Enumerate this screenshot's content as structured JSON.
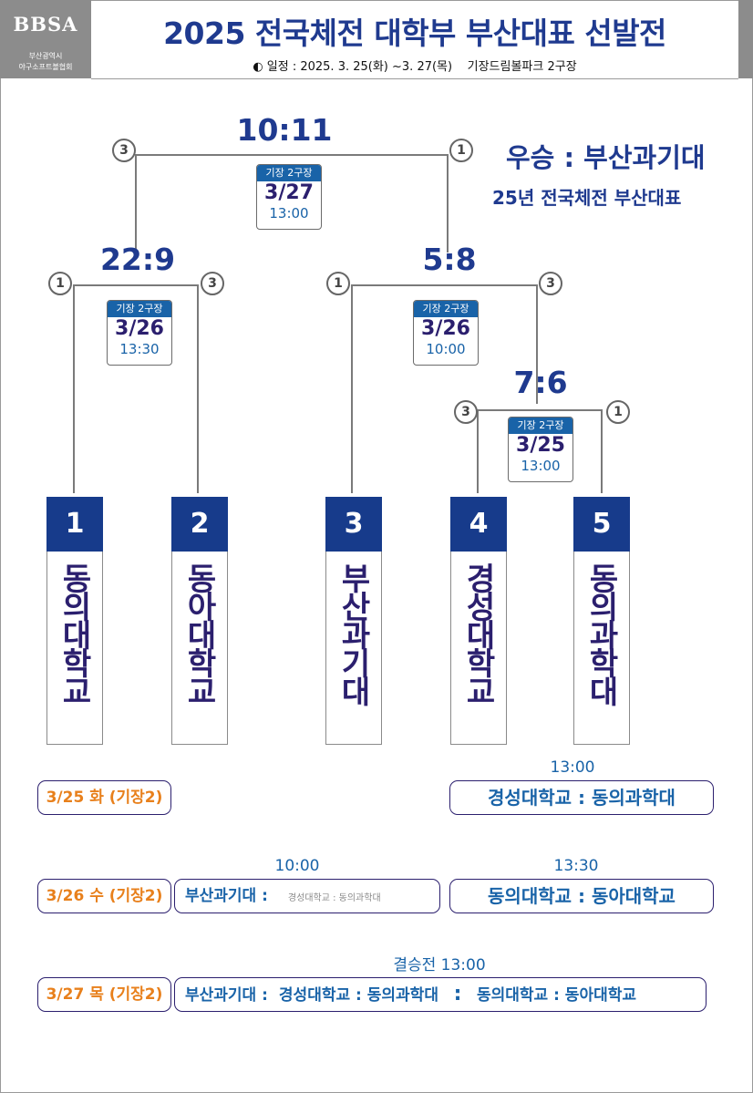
{
  "header": {
    "logo": "BBSA",
    "logo_sub1": "부산광역시",
    "logo_sub2": "야구소프트볼협회",
    "title": "2025 전국체전 대학부 부산대표 선발전",
    "schedule": "◐ 일정 : 2025. 3. 25(화) ~3. 27(목)    기장드림볼파크 2구장"
  },
  "champion": {
    "line1": "우승 : 부산과기대",
    "line2": "25년 전국체전 부산대표"
  },
  "matches": {
    "final": {
      "score": "10:11",
      "left_seed": "3",
      "right_seed": "1",
      "venue": "기장 2구장",
      "date": "3/27",
      "time": "13:00"
    },
    "semi_left": {
      "score": "22:9",
      "left_seed": "1",
      "right_seed": "3",
      "venue": "기장 2구장",
      "date": "3/26",
      "time": "13:30"
    },
    "semi_right": {
      "score": "5:8",
      "left_seed": "1",
      "right_seed": "3",
      "venue": "기장 2구장",
      "date": "3/26",
      "time": "10:00"
    },
    "first_round": {
      "score": "7:6",
      "left_seed": "3",
      "right_seed": "1",
      "venue": "기장 2구장",
      "date": "3/25",
      "time": "13:00"
    }
  },
  "teams": [
    {
      "num": "1",
      "name": "동의대학교"
    },
    {
      "num": "2",
      "name": "동아대학교"
    },
    {
      "num": "3",
      "name": "부산과기대"
    },
    {
      "num": "4",
      "name": "경성대학교"
    },
    {
      "num": "5",
      "name": "동의과학대"
    }
  ],
  "schedule_list": {
    "day1": {
      "label": "3/25 화 (기장2)",
      "time": "13:00",
      "game": "경성대학교 : 동의과학대"
    },
    "day2": {
      "label": "3/26 수 (기장2)",
      "time_left": "10:00",
      "game_left_team": "부산과기대 :",
      "game_left_opponent": "경성대학교 : 동의과학대",
      "time_right": "13:30",
      "game_right": "동의대학교 : 동아대학교"
    },
    "day3": {
      "label": "3/27 목 (기장2)",
      "time": "결승전 13:00",
      "team": "부산과기대 :",
      "match1": "경성대학교 : 동의과학대",
      "colon": ":",
      "match2": "동의대학교 : 동아대학교"
    }
  }
}
